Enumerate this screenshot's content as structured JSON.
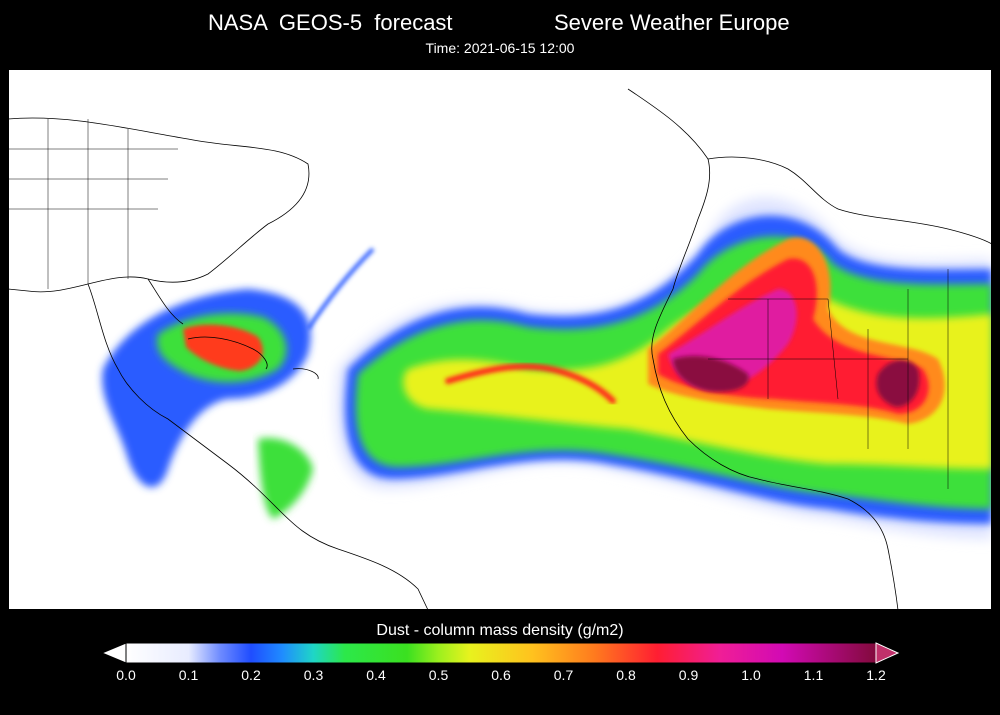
{
  "header": {
    "title_left": "NASA  GEOS-5  forecast",
    "title_right": "Severe Weather Europe",
    "time_text": "Time: 2021-06-15 12:00"
  },
  "colorbar": {
    "title": "Dust - column mass density (g/m2)",
    "ticks": [
      "0.0",
      "0.1",
      "0.2",
      "0.3",
      "0.4",
      "0.5",
      "0.6",
      "0.7",
      "0.8",
      "0.9",
      "1.0",
      "1.1",
      "1.2"
    ],
    "min": 0.0,
    "max": 1.2,
    "extend": "both",
    "under_color": "#ffffff",
    "over_color": "#c0306a",
    "stops": [
      {
        "v": 0.0,
        "c": "#ffffff"
      },
      {
        "v": 0.1,
        "c": "#e8ecff"
      },
      {
        "v": 0.15,
        "c": "#6f8cff"
      },
      {
        "v": 0.2,
        "c": "#1f4dff"
      },
      {
        "v": 0.25,
        "c": "#1f8cff"
      },
      {
        "v": 0.3,
        "c": "#1fd6c6"
      },
      {
        "v": 0.35,
        "c": "#2ce84a"
      },
      {
        "v": 0.45,
        "c": "#3be020"
      },
      {
        "v": 0.5,
        "c": "#9cf01e"
      },
      {
        "v": 0.55,
        "c": "#e8f21e"
      },
      {
        "v": 0.65,
        "c": "#ffc21e"
      },
      {
        "v": 0.75,
        "c": "#ff7a1e"
      },
      {
        "v": 0.85,
        "c": "#ff1e32"
      },
      {
        "v": 0.95,
        "c": "#f01e96"
      },
      {
        "v": 1.05,
        "c": "#d20ab4"
      },
      {
        "v": 1.2,
        "c": "#820a3c"
      }
    ]
  },
  "map": {
    "background_color": "#ffffff",
    "border_color": "#000000"
  }
}
